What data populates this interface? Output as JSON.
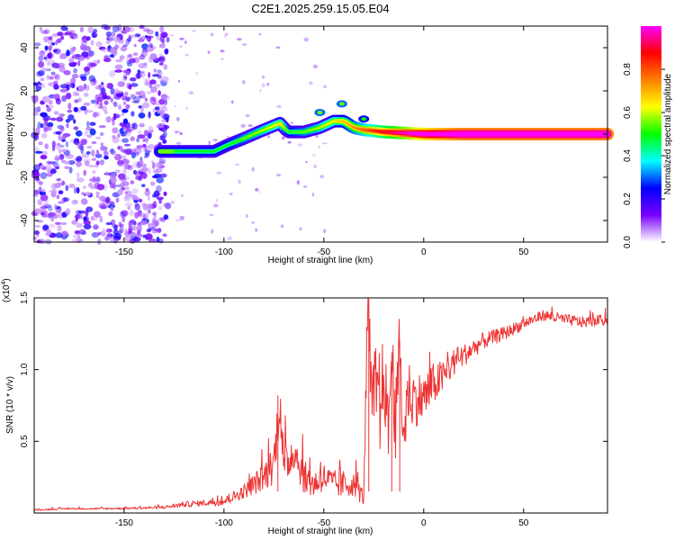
{
  "title": "C2E1.2025.259.15.05.E04",
  "chart_data": [
    {
      "type": "heatmap",
      "xlabel": "Height of straight line (km)",
      "ylabel": "Frequency (Hz)",
      "xlim": [
        -195,
        92
      ],
      "ylim": [
        -50,
        50
      ],
      "xticks": [
        -150,
        -100,
        -50,
        0,
        50
      ],
      "yticks": [
        -40,
        -20,
        0,
        20,
        40
      ],
      "colorbar": {
        "label": "Normalized spectral amplitude",
        "range": [
          0,
          1
        ],
        "ticks": [
          0.0,
          0.2,
          0.4,
          0.6,
          0.8
        ],
        "tick_labels": [
          "0.0",
          "0.2",
          "0.4",
          "0.6",
          "0.8"
        ],
        "colormap": [
          "#ffffff",
          "#7a00ff",
          "#0000ff",
          "#00ffff",
          "#00ff00",
          "#ffff00",
          "#ff8000",
          "#ff0000",
          "#ff00ff"
        ]
      },
      "noise_region": {
        "x_range": [
          -195,
          -128
        ],
        "note": "scattered purple speckle, low amplitude"
      },
      "ridge": {
        "x": [
          -132,
          -125,
          -115,
          -105,
          -98,
          -90,
          -80,
          -72,
          -68,
          -60,
          -52,
          -45,
          -40,
          -35,
          -30,
          -20,
          -10,
          0,
          10,
          20,
          40,
          60,
          80,
          92
        ],
        "freq_hz": [
          -8,
          -8,
          -8,
          -8,
          -5,
          -2,
          2,
          5,
          1,
          1,
          3,
          6,
          6,
          3,
          2,
          1,
          0.5,
          0,
          0,
          0,
          0,
          0,
          0,
          0
        ],
        "amplitude": [
          0.25,
          0.3,
          0.3,
          0.3,
          0.3,
          0.35,
          0.4,
          0.45,
          0.3,
          0.35,
          0.4,
          0.45,
          0.5,
          0.55,
          0.6,
          0.7,
          0.8,
          0.9,
          0.95,
          1.0,
          1.0,
          1.0,
          1.0,
          1.0
        ]
      },
      "spots": [
        {
          "x": -52,
          "freq_hz": 10,
          "amplitude": 0.3
        },
        {
          "x": -41,
          "freq_hz": 14,
          "amplitude": 0.3
        },
        {
          "x": -30,
          "freq_hz": 7,
          "amplitude": 0.25
        }
      ]
    },
    {
      "type": "line",
      "xlabel": "Height of straight line (km)",
      "ylabel": "SNR (10 * v/v)",
      "y_multiplier_label": "(x10",
      "y_multiplier_exp": "4",
      "xlim": [
        -195,
        92
      ],
      "ylim": [
        0,
        1.5
      ],
      "xticks": [
        -150,
        -100,
        -50,
        0,
        50
      ],
      "yticks": [
        0.5,
        1.0,
        1.5
      ],
      "ytick_labels": [
        "0.5",
        "1.0",
        "1.5"
      ],
      "line_color": "#ee3333",
      "series": [
        {
          "name": "SNR",
          "x": [
            -195,
            -180,
            -160,
            -140,
            -130,
            -120,
            -110,
            -100,
            -90,
            -80,
            -75,
            -72,
            -70,
            -65,
            -60,
            -55,
            -50,
            -45,
            -40,
            -35,
            -32,
            -30,
            -28,
            -26,
            -24,
            -22,
            -20,
            -18,
            -16,
            -14,
            -12,
            -10,
            -8,
            -5,
            0,
            5,
            10,
            15,
            20,
            30,
            40,
            50,
            60,
            70,
            80,
            92
          ],
          "y": [
            0.02,
            0.03,
            0.03,
            0.035,
            0.04,
            0.06,
            0.07,
            0.08,
            0.15,
            0.25,
            0.35,
            0.8,
            0.3,
            0.45,
            0.25,
            0.2,
            0.25,
            0.2,
            0.2,
            0.2,
            0.15,
            0.1,
            1.5,
            0.7,
            0.9,
            0.6,
            1.05,
            0.55,
            1.1,
            0.6,
            1.15,
            0.5,
            0.85,
            0.8,
            0.8,
            0.9,
            0.95,
            1.05,
            1.1,
            1.2,
            1.25,
            1.32,
            1.38,
            1.35,
            1.33,
            1.35
          ],
          "jitter": [
            0.005,
            0.005,
            0.005,
            0.008,
            0.01,
            0.02,
            0.02,
            0.03,
            0.05,
            0.1,
            0.15,
            0.2,
            0.15,
            0.15,
            0.12,
            0.1,
            0.1,
            0.1,
            0.1,
            0.08,
            0.08,
            0.05,
            0.3,
            0.3,
            0.3,
            0.3,
            0.3,
            0.3,
            0.3,
            0.3,
            0.3,
            0.25,
            0.25,
            0.2,
            0.18,
            0.15,
            0.12,
            0.1,
            0.08,
            0.06,
            0.05,
            0.04,
            0.04,
            0.04,
            0.04,
            0.04
          ]
        }
      ]
    }
  ]
}
